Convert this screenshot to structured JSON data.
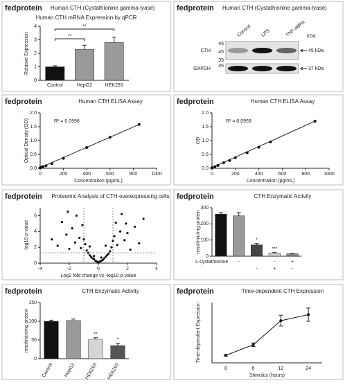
{
  "chart_data": [
    {
      "type": "bar",
      "brand": "fedprotein",
      "header": "Human CTH (Cystathionine gamma-lyase)",
      "title": "Human CTH mRNA Expression by qPCR",
      "ylabel": "Relative Expression",
      "categories": [
        "Control",
        "HepG2",
        "HEK293"
      ],
      "values": [
        1,
        2.3,
        2.8
      ],
      "errors": [
        0.08,
        0.3,
        0.4
      ],
      "colors": [
        "#111111",
        "#9a9a9a",
        "#9a9a9a"
      ],
      "ylim": [
        0,
        4
      ],
      "yticks": [
        0,
        1,
        2,
        3,
        4
      ],
      "significance": [
        null,
        "**",
        "**"
      ],
      "significance_style": "bracket"
    },
    {
      "type": "blot",
      "brand": "fedprotein",
      "header": "Human CTH (Cystathionine gamma-lyase)",
      "lanes": [
        "Control",
        "LPS",
        "TNF-alpha"
      ],
      "unit": "kDa",
      "rows": [
        {
          "name": "CTH",
          "ladder": [
            46,
            45,
            35
          ],
          "size": "45 kDa",
          "values": [
            0.35,
            1,
            0.6
          ]
        },
        {
          "name": "GAPDH",
          "ladder": [
            45
          ],
          "size": "37 kDa",
          "values": [
            1,
            1,
            1
          ]
        }
      ]
    },
    {
      "type": "scatter",
      "brand": "fedprotein",
      "title": "Human CTH ELISA Assay",
      "annotation": "R² = 0.0998",
      "xlabel": "Concentration (pg/mL)",
      "ylabel": "Optical Density (OD)",
      "x": [
        0,
        12.5,
        25,
        50,
        100,
        200,
        400,
        600,
        850
      ],
      "values": [
        0.02,
        0.04,
        0.06,
        0.09,
        0.17,
        0.36,
        0.75,
        1.12,
        1.58
      ],
      "color": "#111111",
      "xlim": [
        0,
        1000
      ],
      "xticks": [
        0,
        200,
        400,
        600,
        800,
        1000
      ],
      "ylim": [
        0,
        2
      ],
      "yticks": [
        {
          "value": 0,
          "label": "0.0"
        },
        {
          "value": 0.5,
          "label": "0.5"
        },
        {
          "value": 1,
          "label": "1.0"
        },
        {
          "value": 1.5,
          "label": "1.5"
        },
        {
          "value": 2,
          "label": "2.0"
        }
      ],
      "fit_line": true
    },
    {
      "type": "scatter",
      "brand": "fedprotein",
      "title": "Human CTH ELISA Assay",
      "annotation": "R² = 0.0959",
      "xlabel": "Concentration (pg/mL)",
      "ylabel": "OD",
      "x": [
        0,
        25,
        50,
        100,
        150,
        200,
        300,
        400,
        500,
        880
      ],
      "values": [
        0.02,
        0.06,
        0.1,
        0.2,
        0.28,
        0.38,
        0.56,
        0.76,
        0.95,
        1.7
      ],
      "color": "#111111",
      "xlim": [
        0,
        1000
      ],
      "xticks": [
        0,
        200,
        400,
        600,
        800,
        1000
      ],
      "ylim": [
        0,
        2
      ],
      "yticks": [
        {
          "value": 0,
          "label": "0.0"
        },
        {
          "value": 0.5,
          "label": "0.5"
        },
        {
          "value": 1,
          "label": "1.0"
        },
        {
          "value": 1.5,
          "label": "1.5"
        },
        {
          "value": 2,
          "label": "2.0"
        }
      ],
      "fit_line": true
    },
    {
      "type": "volcano",
      "brand": "fedprotein",
      "title": "Proteomic Analysis of CTH-overexpressing cells",
      "xlabel": "Log2 fold change vs -log10 p-value",
      "ylabel": "-log10 p-value",
      "x": [
        -3.2,
        -2.8,
        -2.5,
        -2.2,
        -2.0,
        -1.8,
        -1.6,
        -1.5,
        -1.3,
        -1.2,
        -1.1,
        -0.9,
        -0.8,
        -0.7,
        -0.6,
        -0.5,
        -0.4,
        -0.3,
        -0.2,
        -0.1,
        0,
        0.1,
        0.2,
        0.3,
        0.4,
        0.5,
        0.6,
        0.7,
        0.8,
        0.9,
        1.1,
        1.2,
        1.3,
        1.5,
        1.6,
        1.8,
        2.0,
        2.2,
        2.5,
        2.8,
        3.1,
        -0.3,
        0.2,
        -0.6,
        0.5,
        -1.0,
        1.0,
        -2.1,
        1.9,
        0.0
      ],
      "values": [
        3.0,
        2.2,
        5.2,
        3.6,
        1.8,
        4.4,
        2.6,
        6.0,
        3.2,
        1.9,
        4.8,
        2.4,
        1.6,
        1.3,
        1.0,
        0.8,
        0.6,
        0.5,
        0.3,
        0.2,
        0.1,
        0.2,
        0.3,
        0.4,
        0.6,
        0.8,
        1.0,
        1.2,
        1.5,
        2.0,
        3.4,
        5.1,
        2.3,
        4.0,
        6.2,
        2.9,
        3.8,
        1.7,
        4.6,
        2.5,
        5.6,
        0.9,
        0.7,
        2.1,
        2.2,
        3.0,
        2.8,
        6.5,
        5.0,
        0.05
      ],
      "color": "#111111",
      "xlim": [
        -4,
        4
      ],
      "xticks": [
        -4,
        -2,
        0,
        2,
        4
      ],
      "ylim": [
        0,
        7
      ],
      "yticks": [
        0,
        2,
        4,
        6
      ],
      "thresholds": {
        "x": [
          -1,
          1
        ],
        "y": 1.3
      }
    },
    {
      "type": "bar",
      "brand": "fedprotein",
      "title": "CTH Enzymatic Activity",
      "ylabel": "nmol/min/mg protein",
      "values": [
        260,
        250,
        70,
        20,
        15
      ],
      "errors": [
        10,
        20,
        8,
        3,
        2
      ],
      "colors": [
        "#111111",
        "#9a9a9a",
        "#444444",
        "#cccccc",
        "#888888"
      ],
      "ylim": [
        0,
        300
      ],
      "yticks": [
        0,
        100,
        200,
        300
      ],
      "significance": [
        null,
        null,
        "*",
        "***",
        null
      ],
      "significance_style": "star",
      "treatments": [
        {
          "label": "L-cystathionine",
          "marks": [
            null,
            "-",
            null,
            "-",
            "+"
          ]
        },
        {
          "label": null,
          "marks": [
            null,
            null,
            "-",
            "+",
            "-"
          ]
        }
      ]
    },
    {
      "type": "bar",
      "brand": "fedprotein",
      "title": "CTH Enzymatic Activity",
      "ylabel": "nmol/min/mg protein",
      "categories": [
        "Control",
        "HepG2",
        "HEK293",
        "HEK293"
      ],
      "values": [
        100,
        102,
        52,
        35
      ],
      "errors": [
        3,
        4,
        4,
        6
      ],
      "colors": [
        "#111111",
        "#9a9a9a",
        "#d4d4d4",
        "#555555"
      ],
      "ylim": [
        0,
        150
      ],
      "yticks": [
        0,
        50,
        100,
        150
      ],
      "significance": [
        null,
        null,
        "**",
        "*"
      ],
      "significance_style": "star",
      "rotate_labels": true
    },
    {
      "type": "line",
      "brand": "fedprotein",
      "title": "Time-dependent CTH Expression",
      "xlabel": "Stimulus (hours)",
      "ylabel": "Time-dependent Expression",
      "categories": [
        "0",
        "6",
        "12",
        "24"
      ],
      "values": [
        2.5,
        6,
        14,
        16
      ],
      "errors": [
        0.3,
        0.6,
        1.8,
        2.2
      ],
      "color": "#111111",
      "ylim": [
        0,
        20
      ]
    }
  ]
}
